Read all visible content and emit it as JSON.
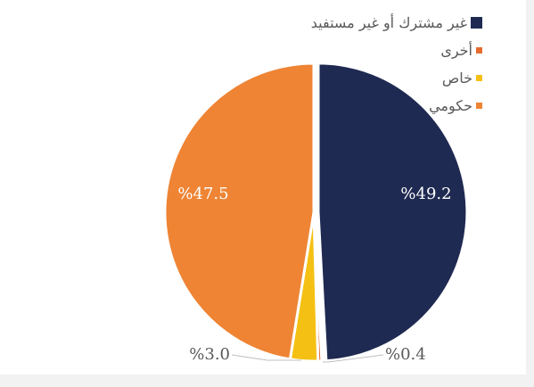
{
  "chart_data": {
    "type": "pie",
    "title": "",
    "slices": [
      {
        "label": "غير مشترك أو غير مستفيد",
        "value": 49.2,
        "data_label": "%49.2",
        "color": "#1f2a52"
      },
      {
        "label": "أخرى",
        "value": 0.4,
        "data_label": "%0.4",
        "color": "#e46c2f"
      },
      {
        "label": "خاص",
        "value": 3.0,
        "data_label": "%3.0",
        "color": "#f5c014"
      },
      {
        "label": "حكومي",
        "value": 47.5,
        "data_label": "%47.5",
        "color": "#ee8434"
      }
    ],
    "legend_position": "top-right",
    "start_angle_deg": 0,
    "direction": "clockwise",
    "exploded_slice_index": 0
  }
}
